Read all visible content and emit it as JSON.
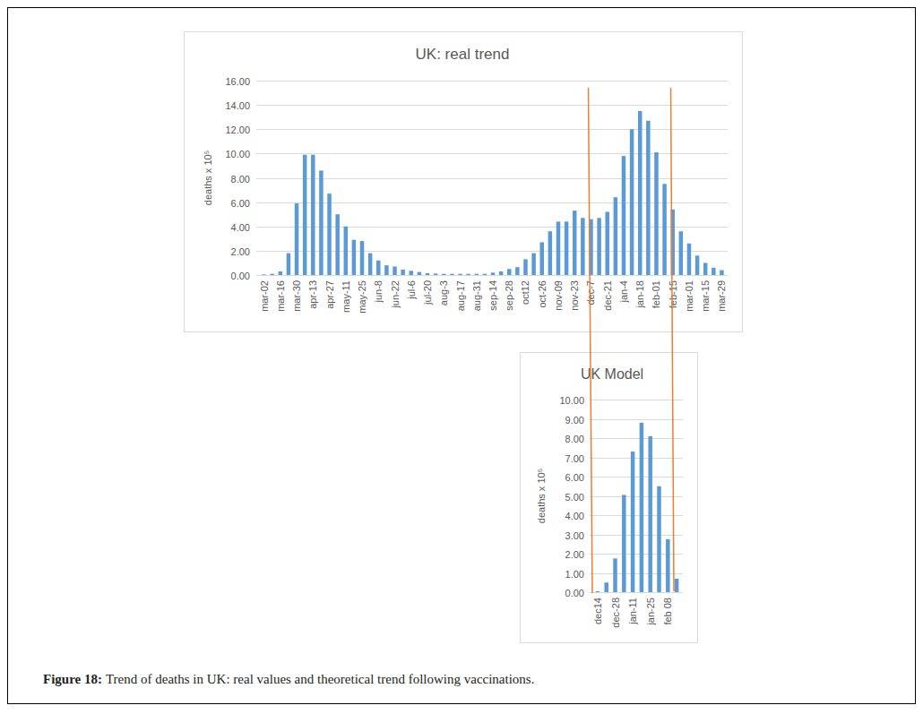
{
  "chart_data": [
    {
      "type": "bar",
      "title": "UK: real trend",
      "y_label": "deaths x 10⁵",
      "color": "#5b9bd5",
      "grid": true,
      "categories": [
        "mar-02",
        null,
        "mar-16",
        null,
        "mar-30",
        null,
        "apr-13",
        null,
        "apr-27",
        null,
        "may-11",
        null,
        "may-25",
        null,
        "jun-8",
        null,
        "jun-22",
        null,
        "jul-6",
        null,
        "jul-20",
        null,
        "aug-3",
        null,
        "aug-17",
        null,
        "aug-31",
        null,
        "sep-14",
        null,
        "sep-28",
        null,
        "oct12",
        null,
        "oct-26",
        null,
        "nov-09",
        null,
        "nov-23",
        null,
        "dec-7",
        null,
        "dec-21",
        null,
        "jan-4",
        null,
        "jan-18",
        null,
        "feb-01",
        null,
        "feb-15",
        null,
        "mar-01",
        null,
        "mar-15",
        null,
        "mar-29"
      ],
      "values": [
        0.05,
        0.1,
        0.3,
        1.8,
        5.9,
        9.9,
        9.9,
        8.6,
        6.7,
        5.0,
        4.0,
        2.9,
        2.8,
        1.8,
        1.2,
        0.8,
        0.7,
        0.45,
        0.35,
        0.25,
        0.15,
        0.12,
        0.1,
        0.1,
        0.1,
        0.1,
        0.1,
        0.1,
        0.2,
        0.3,
        0.5,
        0.65,
        1.3,
        1.8,
        2.7,
        3.6,
        4.4,
        4.4,
        5.3,
        4.7,
        4.6,
        4.7,
        5.2,
        6.4,
        9.8,
        12.0,
        13.5,
        12.7,
        10.1,
        7.5,
        5.4,
        3.6,
        2.6,
        1.6,
        1.0,
        0.6,
        0.4
      ],
      "ylim": [
        0,
        16
      ],
      "yticks": [
        {
          "value": 0,
          "label": "0.00"
        },
        {
          "value": 2,
          "label": "2.00"
        },
        {
          "value": 4,
          "label": "4.00"
        },
        {
          "value": 6,
          "label": "6.00"
        },
        {
          "value": 8,
          "label": "8.00"
        },
        {
          "value": 10,
          "label": "10.00"
        },
        {
          "value": 12,
          "label": "12.00"
        },
        {
          "value": 14,
          "label": "14.00"
        },
        {
          "value": 16,
          "label": "16.00"
        }
      ]
    },
    {
      "type": "bar",
      "title": "UK Model",
      "y_label": "deaths x 10⁵",
      "color": "#5b9bd5",
      "grid": true,
      "categories": [
        "dec14",
        null,
        "dec-28",
        null,
        "jan-11",
        null,
        "jan-25",
        null,
        "feb 08",
        null
      ],
      "values": [
        0.05,
        0.5,
        1.75,
        5.05,
        7.3,
        8.8,
        8.1,
        5.5,
        2.75,
        0.7
      ],
      "ylim": [
        0,
        10
      ],
      "yticks": [
        {
          "value": 0,
          "label": "0.00"
        },
        {
          "value": 1,
          "label": "1.00"
        },
        {
          "value": 2,
          "label": "2.00"
        },
        {
          "value": 3,
          "label": "3.00"
        },
        {
          "value": 4,
          "label": "4.00"
        },
        {
          "value": 5,
          "label": "5.00"
        },
        {
          "value": 6,
          "label": "6.00"
        },
        {
          "value": 7,
          "label": "7.00"
        },
        {
          "value": 8,
          "label": "8.00"
        },
        {
          "value": 9,
          "label": "9.00"
        },
        {
          "value": 10,
          "label": "10.00"
        }
      ]
    }
  ],
  "figure": {
    "label": "Figure 18:",
    "text": "Trend of deaths in UK: real values and theoretical trend following vaccinations."
  }
}
